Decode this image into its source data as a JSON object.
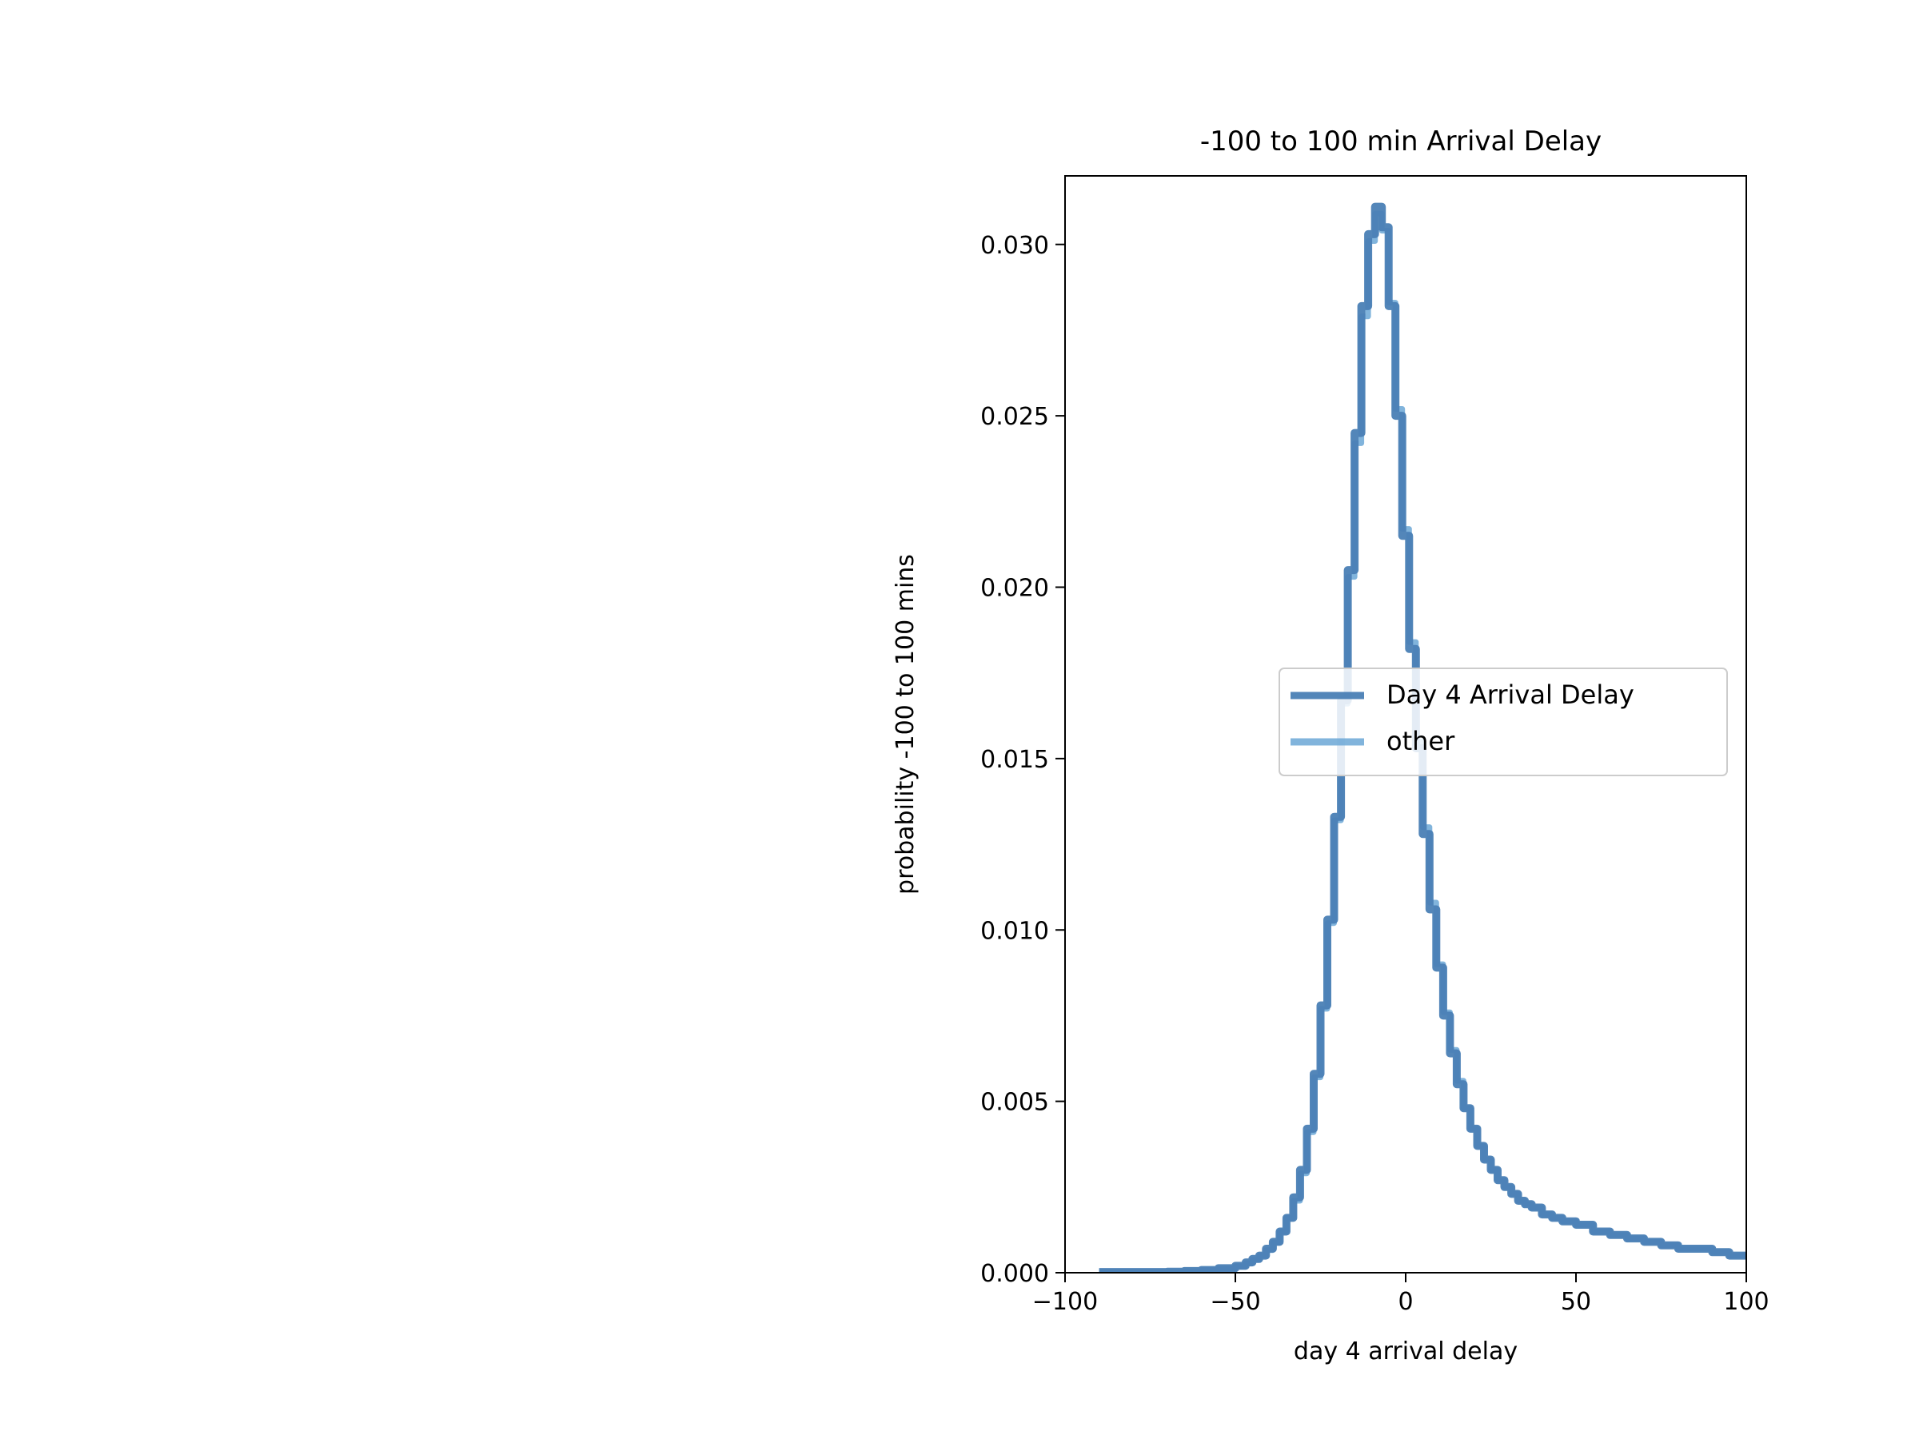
{
  "chart_data": {
    "type": "line",
    "title": "-100 to 100 min Arrival Delay",
    "xlabel": "day 4 arrival delay",
    "ylabel": "probability -100 to 100 mins",
    "xlim": [
      -100,
      100
    ],
    "ylim": [
      0,
      0.032
    ],
    "xticks": [
      {
        "value": -100,
        "label": "−100"
      },
      {
        "value": -50,
        "label": "−50"
      },
      {
        "value": 0,
        "label": "0"
      },
      {
        "value": 50,
        "label": "50"
      },
      {
        "value": 100,
        "label": "100"
      }
    ],
    "yticks": [
      {
        "value": 0.0,
        "label": "0.000"
      },
      {
        "value": 0.005,
        "label": "0.005"
      },
      {
        "value": 0.01,
        "label": "0.010"
      },
      {
        "value": 0.015,
        "label": "0.015"
      },
      {
        "value": 0.02,
        "label": "0.020"
      },
      {
        "value": 0.025,
        "label": "0.025"
      },
      {
        "value": 0.03,
        "label": "0.030"
      }
    ],
    "grid": false,
    "legend_position": "center-right",
    "series": [
      {
        "name": "Day 4 Arrival Delay",
        "color": "#4a7fb5",
        "step": "post",
        "x": [
          -90,
          -80,
          -70,
          -65,
          -60,
          -55,
          -50,
          -47,
          -45,
          -43,
          -41,
          -39,
          -37,
          -35,
          -33,
          -31,
          -29,
          -27,
          -25,
          -23,
          -21,
          -19,
          -17,
          -15,
          -13,
          -11,
          -9,
          -7,
          -5,
          -3,
          -1,
          1,
          3,
          5,
          7,
          9,
          11,
          13,
          15,
          17,
          19,
          21,
          23,
          25,
          27,
          29,
          31,
          33,
          35,
          37,
          40,
          43,
          46,
          50,
          55,
          60,
          65,
          70,
          75,
          80,
          85,
          90,
          95,
          100
        ],
        "y": [
          2e-05,
          2e-05,
          3e-05,
          5e-05,
          8e-05,
          0.00013,
          0.0002,
          0.0003,
          0.0004,
          0.0005,
          0.0007,
          0.0009,
          0.0012,
          0.0016,
          0.0022,
          0.003,
          0.0042,
          0.0058,
          0.0078,
          0.0103,
          0.0133,
          0.0167,
          0.0205,
          0.0245,
          0.0282,
          0.0303,
          0.0311,
          0.0305,
          0.0282,
          0.025,
          0.0215,
          0.0182,
          0.0153,
          0.0128,
          0.0106,
          0.0089,
          0.0075,
          0.0064,
          0.0055,
          0.0048,
          0.0042,
          0.0037,
          0.0033,
          0.003,
          0.0027,
          0.0025,
          0.0023,
          0.0021,
          0.002,
          0.0019,
          0.0017,
          0.0016,
          0.0015,
          0.0014,
          0.0012,
          0.0011,
          0.001,
          0.0009,
          0.0008,
          0.0007,
          0.0007,
          0.0006,
          0.0005,
          0.0005
        ]
      },
      {
        "name": "other",
        "color": "#6ba7d6",
        "step": "post",
        "x": [
          -90,
          -80,
          -70,
          -65,
          -60,
          -55,
          -50,
          -47,
          -45,
          -43,
          -41,
          -39,
          -37,
          -35,
          -33,
          -31,
          -29,
          -27,
          -25,
          -23,
          -21,
          -19,
          -17,
          -15,
          -13,
          -11,
          -9,
          -7,
          -5,
          -3,
          -1,
          1,
          3,
          5,
          7,
          9,
          11,
          13,
          15,
          17,
          19,
          21,
          23,
          25,
          27,
          29,
          31,
          33,
          35,
          37,
          40,
          43,
          46,
          50,
          55,
          60,
          65,
          70,
          75,
          80,
          85,
          90,
          95,
          100
        ],
        "y": [
          2e-05,
          2e-05,
          3e-05,
          5e-05,
          8e-05,
          0.00012,
          0.00019,
          0.00028,
          0.00038,
          0.0005,
          0.00066,
          0.00088,
          0.0012,
          0.0016,
          0.0021,
          0.0029,
          0.0041,
          0.0057,
          0.0077,
          0.0102,
          0.0132,
          0.0166,
          0.0203,
          0.0242,
          0.0279,
          0.0301,
          0.0309,
          0.0304,
          0.0283,
          0.0252,
          0.0217,
          0.0184,
          0.0155,
          0.013,
          0.0108,
          0.009,
          0.0076,
          0.0065,
          0.0056,
          0.0048,
          0.0042,
          0.0037,
          0.0033,
          0.003,
          0.0027,
          0.0025,
          0.0023,
          0.0021,
          0.002,
          0.0019,
          0.0017,
          0.0016,
          0.0015,
          0.0014,
          0.0012,
          0.0011,
          0.001,
          0.0009,
          0.0008,
          0.0007,
          0.0007,
          0.0006,
          0.0005,
          0.0005
        ]
      }
    ]
  }
}
